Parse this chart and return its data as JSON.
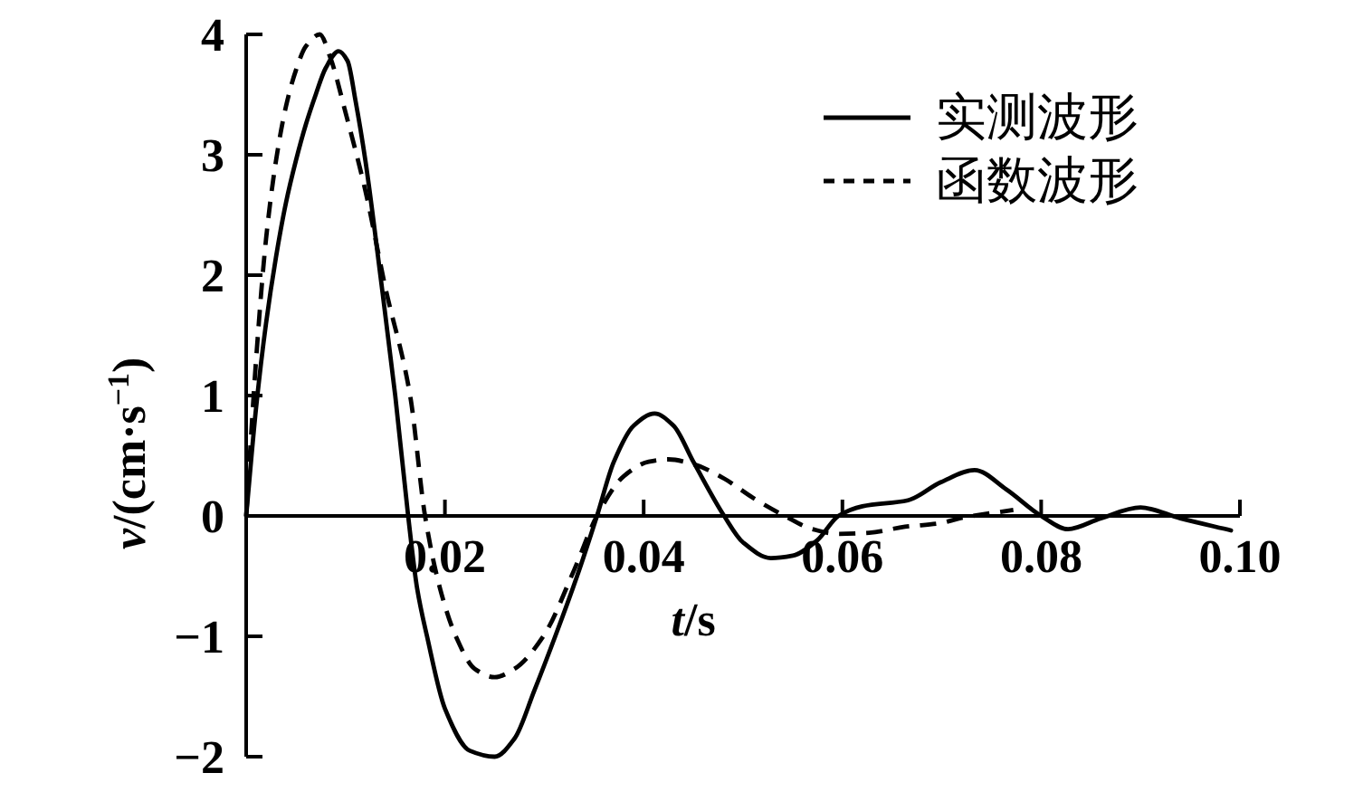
{
  "chart_data": {
    "type": "line",
    "xlabel": "t/s",
    "ylabel": "v/(cm·s$^{−1}$)",
    "xlim": [
      0,
      0.1
    ],
    "xticks": [
      0.02,
      0.04,
      0.06,
      0.08,
      {
        "value": 0.1,
        "label": "0.10"
      }
    ],
    "ylim": [
      -2,
      4
    ],
    "yticks": [
      -2,
      -1,
      0,
      1,
      2,
      3,
      4
    ],
    "grid": false,
    "legend": "top right",
    "marker": "none",
    "series": [
      {
        "name": "实测波形",
        "color": "#000000",
        "line_style": "solid",
        "x": [
          0,
          0.001,
          0.002,
          0.003,
          0.004,
          0.005,
          0.006,
          0.007,
          0.008,
          0.0093,
          0.0102,
          0.011,
          0.012,
          0.0135,
          0.015,
          0.0163,
          0.0172,
          0.0182,
          0.02,
          0.0225,
          0.025,
          0.027,
          0.029,
          0.0311,
          0.0333,
          0.0353,
          0.037,
          0.039,
          0.0411,
          0.043,
          0.045,
          0.0481,
          0.05,
          0.0528,
          0.055,
          0.0575,
          0.0596,
          0.062,
          0.0666,
          0.0699,
          0.0733,
          0.0765,
          0.08,
          0.0827,
          0.086,
          0.09,
          0.094,
          0.0991
        ],
        "values": [
          0,
          0.9,
          1.6,
          2.15,
          2.6,
          2.95,
          3.25,
          3.5,
          3.72,
          3.86,
          3.78,
          3.45,
          2.95,
          2.0,
          1.0,
          0,
          -0.6,
          -1.0,
          -1.6,
          -1.95,
          -2.0,
          -1.85,
          -1.45,
          -1.0,
          -0.5,
          0,
          0.45,
          0.75,
          0.85,
          0.75,
          0.45,
          0,
          -0.22,
          -0.35,
          -0.33,
          -0.2,
          0,
          0.08,
          0.13,
          0.28,
          0.38,
          0.22,
          0,
          -0.11,
          -0.02,
          0.07,
          -0.02,
          -0.12
        ]
      },
      {
        "name": "函数波形",
        "color": "#000000",
        "line_style": "dashed",
        "x": [
          0,
          0.001,
          0.002,
          0.003,
          0.004,
          0.005,
          0.006,
          0.0074,
          0.0085,
          0.01,
          0.012,
          0.014,
          0.0165,
          0.018,
          0.0195,
          0.0211,
          0.023,
          0.025,
          0.027,
          0.0299,
          0.033,
          0.0353,
          0.038,
          0.0405,
          0.0425,
          0.045,
          0.0481,
          0.051,
          0.0542,
          0.057,
          0.0596,
          0.0627,
          0.0663,
          0.0699,
          0.0718,
          0.0772
        ],
        "values": [
          0,
          1.3,
          2.3,
          2.95,
          3.4,
          3.7,
          3.9,
          4.0,
          3.8,
          3.35,
          2.7,
          1.9,
          1.0,
          0,
          -0.6,
          -1.0,
          -1.27,
          -1.34,
          -1.27,
          -1.0,
          -0.45,
          0,
          0.33,
          0.45,
          0.47,
          0.43,
          0.31,
          0.15,
          0,
          -0.11,
          -0.15,
          -0.14,
          -0.09,
          -0.06,
          -0.02,
          0.05
        ]
      }
    ]
  }
}
